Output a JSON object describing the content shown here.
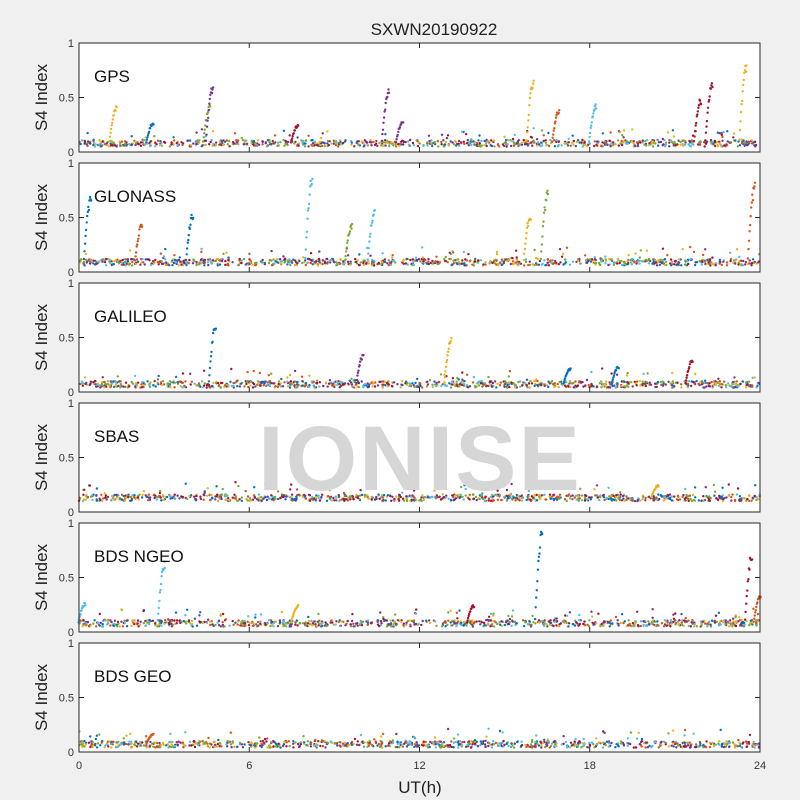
{
  "chart_data": {
    "type": "scatter",
    "title": "SXWN20190922",
    "xlabel": "UT(h)",
    "xlim": [
      0,
      24
    ],
    "xticks": [
      0,
      6,
      12,
      18,
      24
    ],
    "watermark": "IONISE",
    "series_colors": [
      "#0072bd",
      "#d95319",
      "#edb120",
      "#7e2f8e",
      "#77ac30",
      "#4dbeee",
      "#a2142f"
    ],
    "panels": [
      {
        "name": "GPS",
        "ylabel": "S4 Index",
        "ylim": [
          0,
          1
        ],
        "yticks": [
          0,
          0.5,
          1
        ],
        "baseline": 0.08,
        "spikes": [
          [
            1.2,
            0.43,
            2
          ],
          [
            2.5,
            0.28,
            0
          ],
          [
            4.5,
            0.43,
            4
          ],
          [
            4.6,
            0.62,
            3
          ],
          [
            7.6,
            0.25,
            6
          ],
          [
            10.8,
            0.58,
            3
          ],
          [
            11.3,
            0.3,
            3
          ],
          [
            15.9,
            0.68,
            2
          ],
          [
            16.8,
            0.4,
            1
          ],
          [
            18.1,
            0.45,
            5
          ],
          [
            22.2,
            0.65,
            6
          ],
          [
            21.8,
            0.5,
            6
          ],
          [
            23.4,
            0.83,
            2
          ]
        ]
      },
      {
        "name": "GLONASS",
        "ylabel": "S4 Index",
        "ylim": [
          0,
          1
        ],
        "yticks": [
          0,
          0.5,
          1
        ],
        "baseline": 0.09,
        "spikes": [
          [
            0.3,
            0.7,
            0
          ],
          [
            2.1,
            0.45,
            1
          ],
          [
            3.9,
            0.55,
            0
          ],
          [
            8.1,
            0.88,
            5
          ],
          [
            9.5,
            0.45,
            4
          ],
          [
            10.3,
            0.57,
            5
          ],
          [
            15.8,
            0.55,
            2
          ],
          [
            16.4,
            0.75,
            4
          ],
          [
            23.7,
            0.82,
            1
          ]
        ]
      },
      {
        "name": "GALILEO",
        "ylabel": "S4 Index",
        "ylim": [
          0,
          1
        ],
        "yticks": [
          0,
          0.5,
          1
        ],
        "baseline": 0.07,
        "spikes": [
          [
            4.7,
            0.64,
            0
          ],
          [
            9.9,
            0.35,
            3
          ],
          [
            13,
            0.5,
            2
          ],
          [
            17.2,
            0.22,
            0
          ],
          [
            18.9,
            0.24,
            0
          ],
          [
            21.5,
            0.3,
            6
          ]
        ]
      },
      {
        "name": "SBAS",
        "ylabel": "S4 Index",
        "ylim": [
          0,
          1
        ],
        "yticks": [
          0,
          0.5,
          1
        ],
        "baseline": 0.13,
        "spikes": [
          [
            20.3,
            0.25,
            2
          ]
        ]
      },
      {
        "name": "BDS NGEO",
        "ylabel": "S4 Index",
        "ylim": [
          0,
          1
        ],
        "yticks": [
          0,
          0.5,
          1
        ],
        "baseline": 0.08,
        "spikes": [
          [
            0.1,
            0.27,
            5
          ],
          [
            2.9,
            0.65,
            5
          ],
          [
            7.6,
            0.25,
            2
          ],
          [
            13.8,
            0.25,
            6
          ],
          [
            16.2,
            0.95,
            0
          ],
          [
            23.6,
            0.75,
            6
          ],
          [
            23.9,
            0.35,
            1
          ]
        ]
      },
      {
        "name": "BDS GEO",
        "ylabel": "S4 Index",
        "ylim": [
          0,
          1
        ],
        "yticks": [
          0,
          0.5,
          1
        ],
        "baseline": 0.07,
        "spikes": [
          [
            2.5,
            0.17,
            1
          ]
        ]
      }
    ]
  }
}
